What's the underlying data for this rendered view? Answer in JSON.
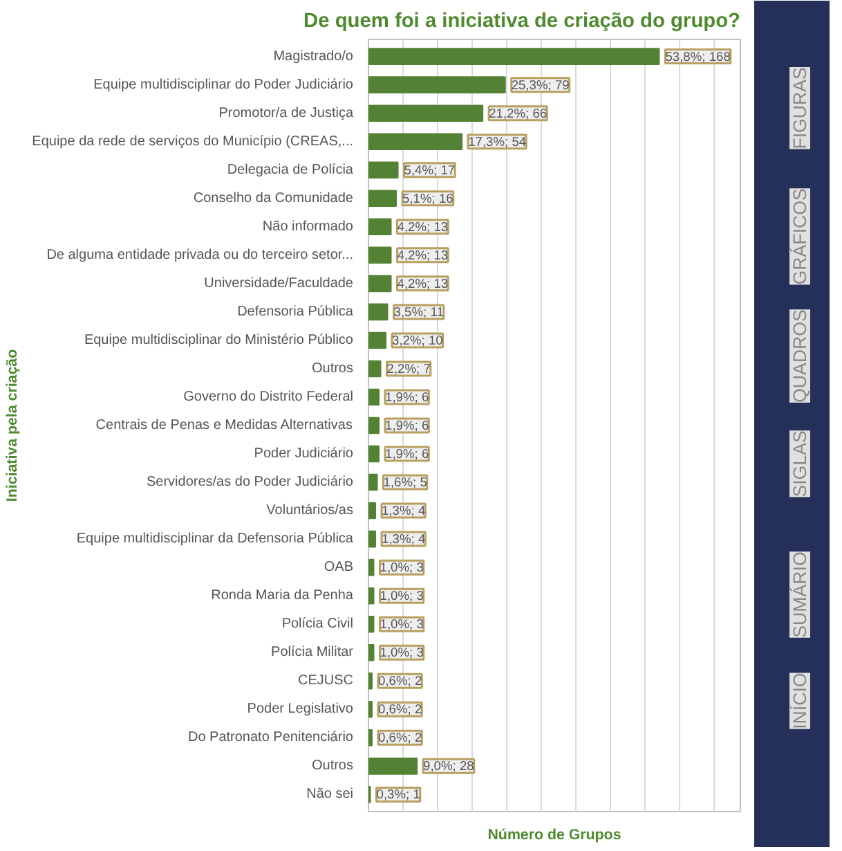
{
  "chart_data": {
    "type": "bar",
    "orientation": "horizontal",
    "title": "De quem foi a iniciativa de criação do grupo?",
    "xlabel": "Número de Grupos",
    "ylabel": "Iniciativa pela criação",
    "categories": [
      "Magistrado/o",
      "Equipe multidisciplinar do Poder Judiciário",
      "Promotor/a de Justiça",
      "Equipe da rede de serviços do Município (CREAS,...",
      "Delegacia de Polícia",
      "Conselho da Comunidade",
      "Não informado",
      "De alguma entidade privada ou do terceiro setor...",
      "Universidade/Faculdade",
      "Defensoria Pública",
      "Equipe multidisciplinar do Ministério Público",
      "Outros",
      "Governo do Distrito Federal",
      "Centrais de Penas e Medidas Alternativas",
      "Poder Judiciário",
      "Servidores/as do Poder Judiciário",
      "Voluntários/as",
      "Equipe multidisciplinar da Defensoria Pública",
      "OAB",
      "Ronda Maria da Penha",
      "Polícia Civil",
      "Polícia Militar",
      "CEJUSC",
      "Poder Legislativo",
      "Do Patronato Penitenciário",
      "Outros",
      "Não sei"
    ],
    "values": [
      168,
      79,
      66,
      54,
      17,
      16,
      13,
      13,
      13,
      11,
      10,
      7,
      6,
      6,
      6,
      5,
      4,
      4,
      3,
      3,
      3,
      3,
      2,
      2,
      2,
      28,
      1
    ],
    "value_labels": [
      "53,8%; 168",
      "25,3%; 79",
      "21,2%; 66",
      "17,3%; 54",
      "5,4%; 17",
      "5,1%; 16",
      "4,2%; 13",
      "4,2%; 13",
      "4,2%; 13",
      "3,5%; 11",
      "3,2%; 10",
      "2,2%; 7",
      "1,9%; 6",
      "1,9%; 6",
      "1,9%; 6",
      "1,6%; 5",
      "1,3%; 4",
      "1,3%; 4",
      "1,0%; 3",
      "1,0%; 3",
      "1,0%; 3",
      "1,0%; 3",
      "0,6%; 2",
      "0,6%; 2",
      "0,6%; 2",
      "9,0%; 28",
      "0,3%; 1"
    ],
    "color": "#548235",
    "xlim": [
      0,
      215
    ],
    "xticks": [
      {
        "value": 0,
        "label": null
      },
      {
        "value": 20,
        "label": null
      },
      {
        "value": 40,
        "label": null
      },
      {
        "value": 60,
        "label": null
      },
      {
        "value": 80,
        "label": null
      },
      {
        "value": 100,
        "label": null
      },
      {
        "value": 120,
        "label": null
      },
      {
        "value": 140,
        "label": null
      },
      {
        "value": 160,
        "label": null
      },
      {
        "value": 180,
        "label": null
      },
      {
        "value": 200,
        "label": null
      }
    ],
    "grid": "x",
    "tick_labels": "y",
    "annotations": [
      "FIGURAS",
      "GRÁFICOS",
      "QUADROS",
      "SIGLAS",
      "SUMÁRIO",
      "INÍCIO"
    ]
  }
}
